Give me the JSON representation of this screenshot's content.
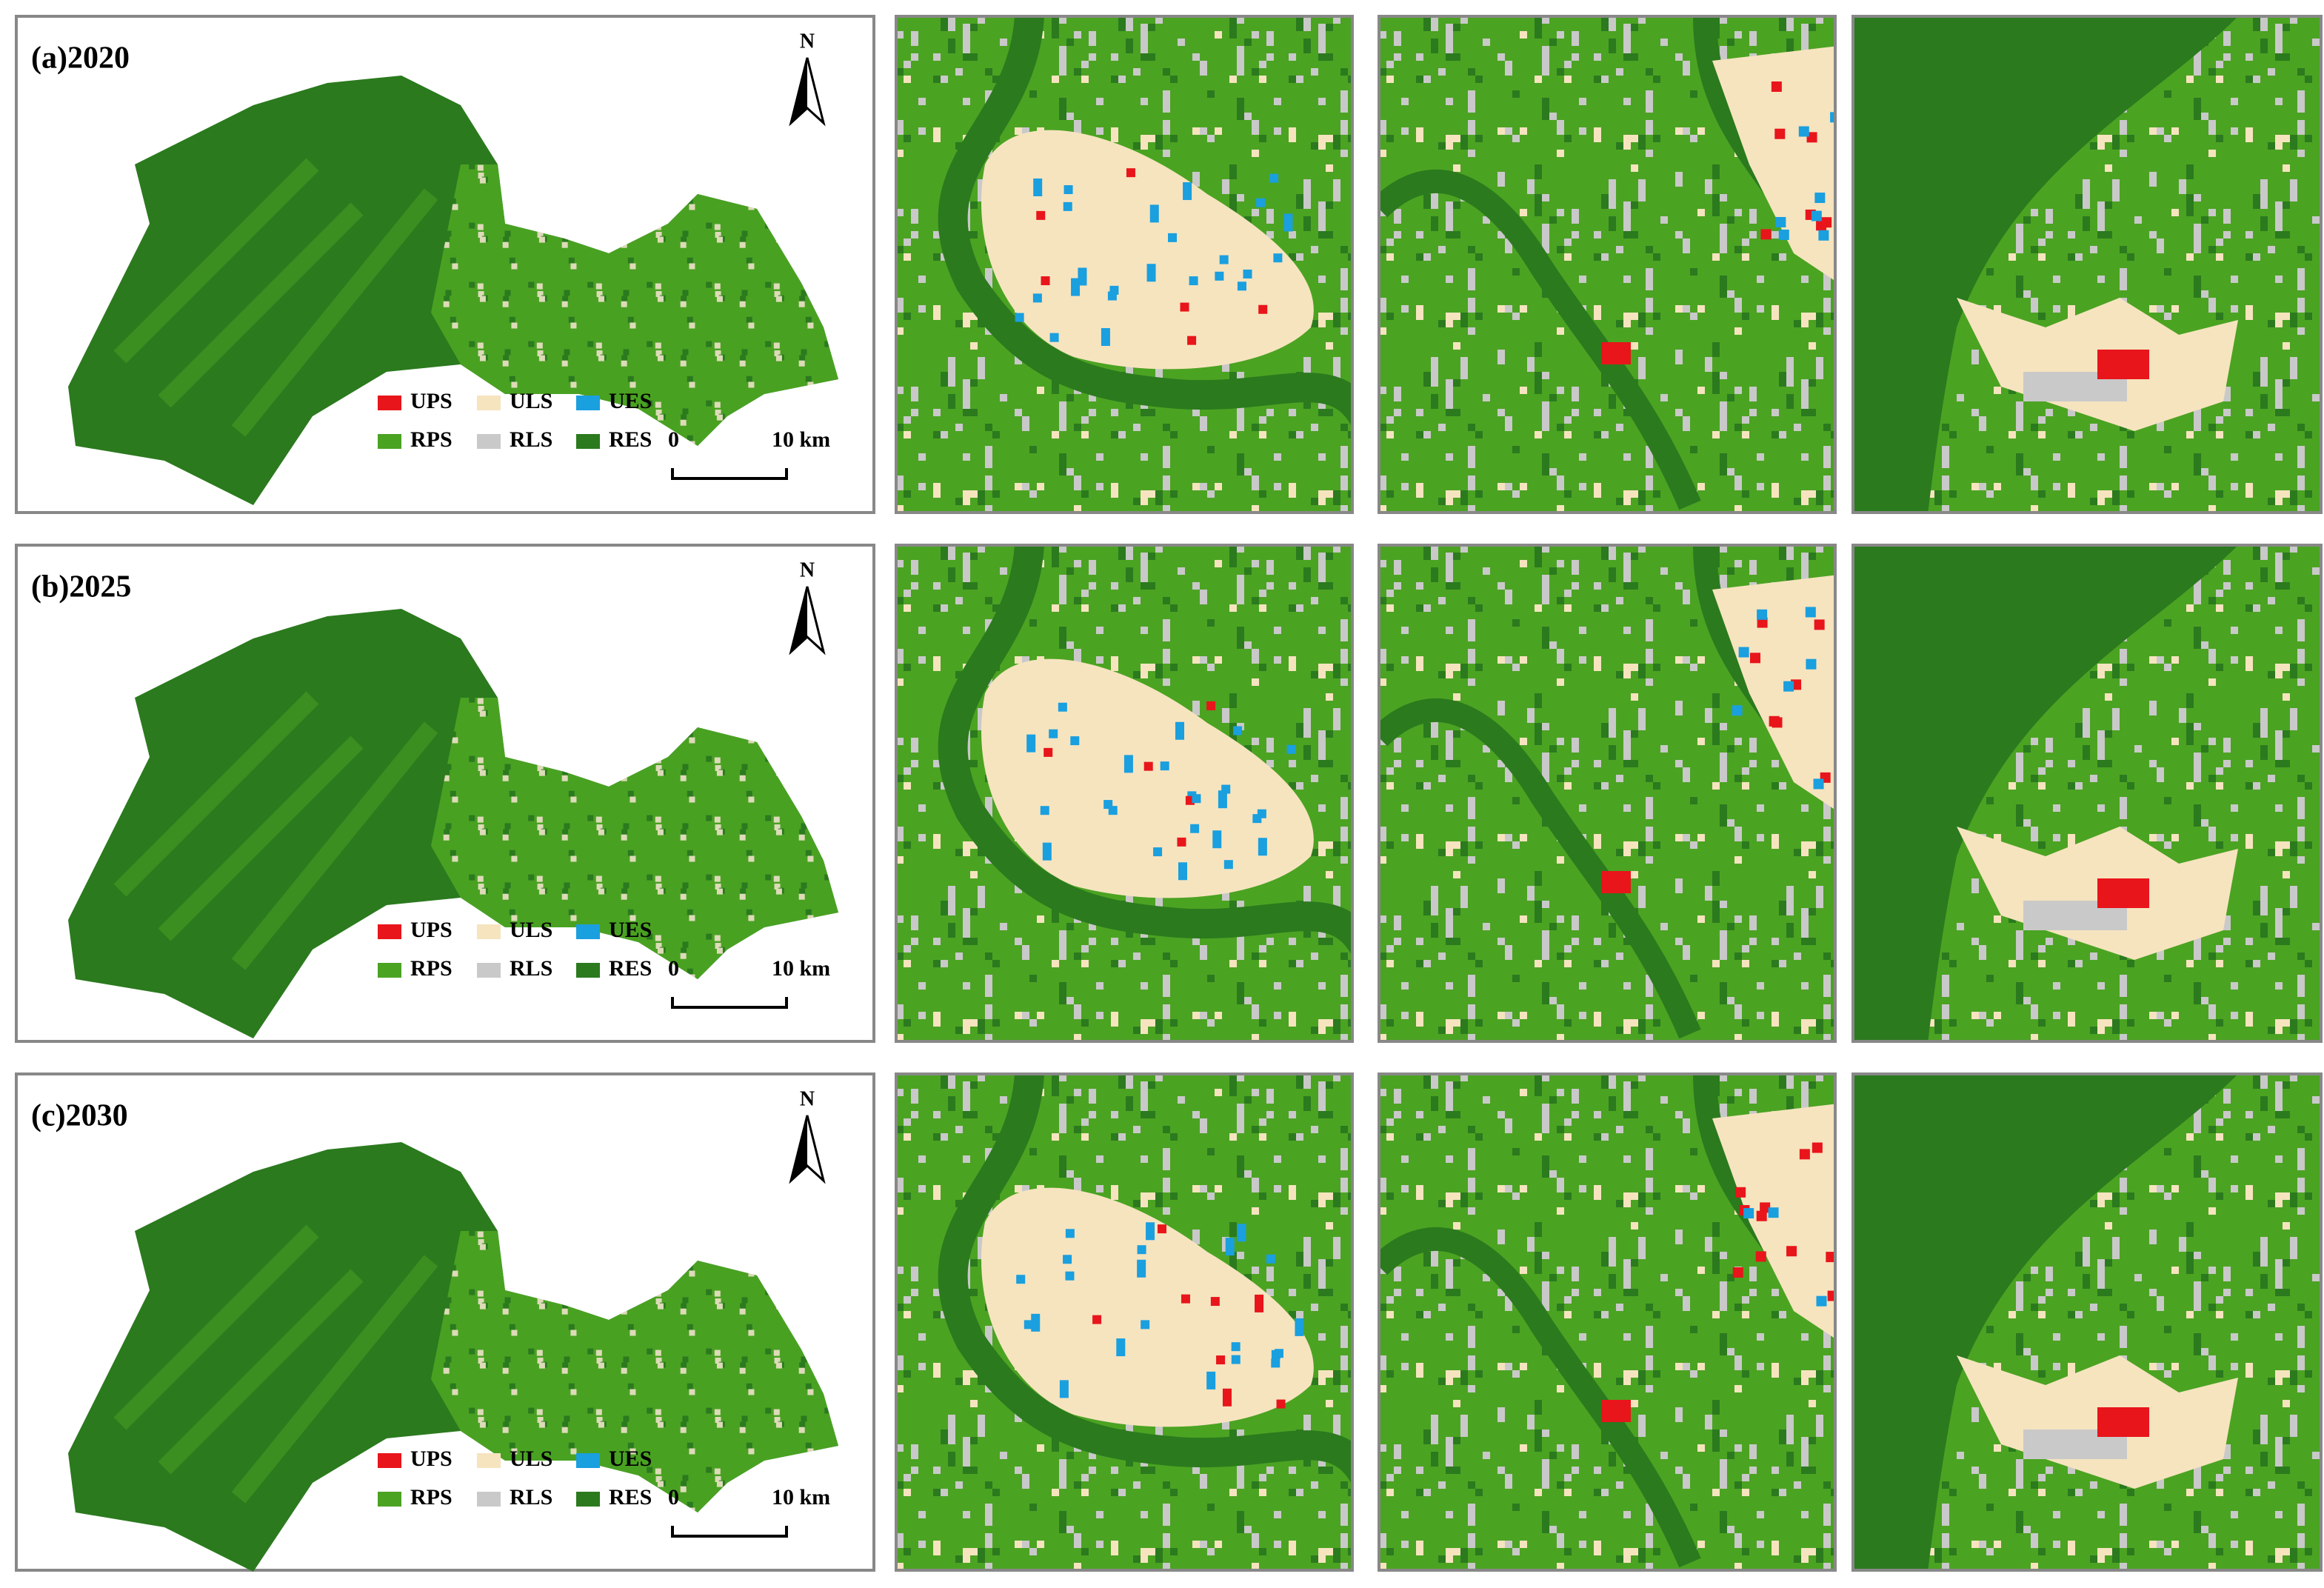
{
  "panels": [
    {
      "label": "(a)2020",
      "north": "N",
      "legend": [
        {
          "name": "UPS",
          "color": "#e8151b"
        },
        {
          "name": "ULS",
          "color": "#f6e4bf"
        },
        {
          "name": "UES",
          "color": "#1a9fdf"
        },
        {
          "name": "RPS",
          "color": "#4ba322"
        },
        {
          "name": "RLS",
          "color": "#c9c9c9"
        },
        {
          "name": "RES",
          "color": "#2b7a1e"
        }
      ],
      "scale_bar": {
        "start": "0",
        "end": "10 km"
      }
    },
    {
      "label": "(b)2025",
      "north": "N",
      "legend": [
        {
          "name": "UPS",
          "color": "#e8151b"
        },
        {
          "name": "ULS",
          "color": "#f6e4bf"
        },
        {
          "name": "UES",
          "color": "#1a9fdf"
        },
        {
          "name": "RPS",
          "color": "#4ba322"
        },
        {
          "name": "RLS",
          "color": "#c9c9c9"
        },
        {
          "name": "RES",
          "color": "#2b7a1e"
        }
      ],
      "scale_bar": {
        "start": "0",
        "end": "10 km"
      }
    },
    {
      "label": "(c)2030",
      "north": "N",
      "legend": [
        {
          "name": "UPS",
          "color": "#e8151b"
        },
        {
          "name": "ULS",
          "color": "#f6e4bf"
        },
        {
          "name": "UES",
          "color": "#1a9fdf"
        },
        {
          "name": "RPS",
          "color": "#4ba322"
        },
        {
          "name": "RLS",
          "color": "#c9c9c9"
        },
        {
          "name": "RES",
          "color": "#2b7a1e"
        }
      ],
      "scale_bar": {
        "start": "0",
        "end": "10 km"
      }
    }
  ]
}
